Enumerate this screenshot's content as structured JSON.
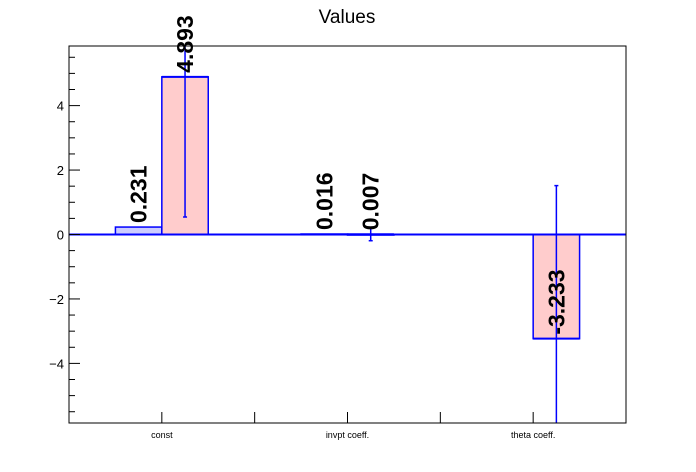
{
  "chart_data": {
    "type": "bar",
    "title": "Values",
    "xlabel": "",
    "ylabel": "",
    "ylim": [
      -5.85,
      5.85
    ],
    "yticks": [
      -4,
      -2,
      0,
      2,
      4
    ],
    "ytick_labels": [
      "−4",
      "−2",
      "0",
      "2",
      "4"
    ],
    "categories": [
      "const",
      "invpt coeff.",
      "theta coeff."
    ],
    "grid": false,
    "legend": "none",
    "series": [
      {
        "fill": "#ccccff",
        "stroke": "#0000ff",
        "values": [
          0.231,
          0.016,
          null
        ],
        "errors": [
          0.0,
          0.0,
          null
        ],
        "labels": [
          "0.231",
          "0.016",
          ""
        ]
      },
      {
        "fill": "#ffcccc",
        "stroke": "#0000ff",
        "values": [
          4.893,
          0.007,
          -3.233
        ],
        "errors": [
          4.35,
          0.2,
          4.75
        ],
        "labels": [
          "4.893",
          "0.007",
          "-3.233"
        ]
      }
    ]
  }
}
